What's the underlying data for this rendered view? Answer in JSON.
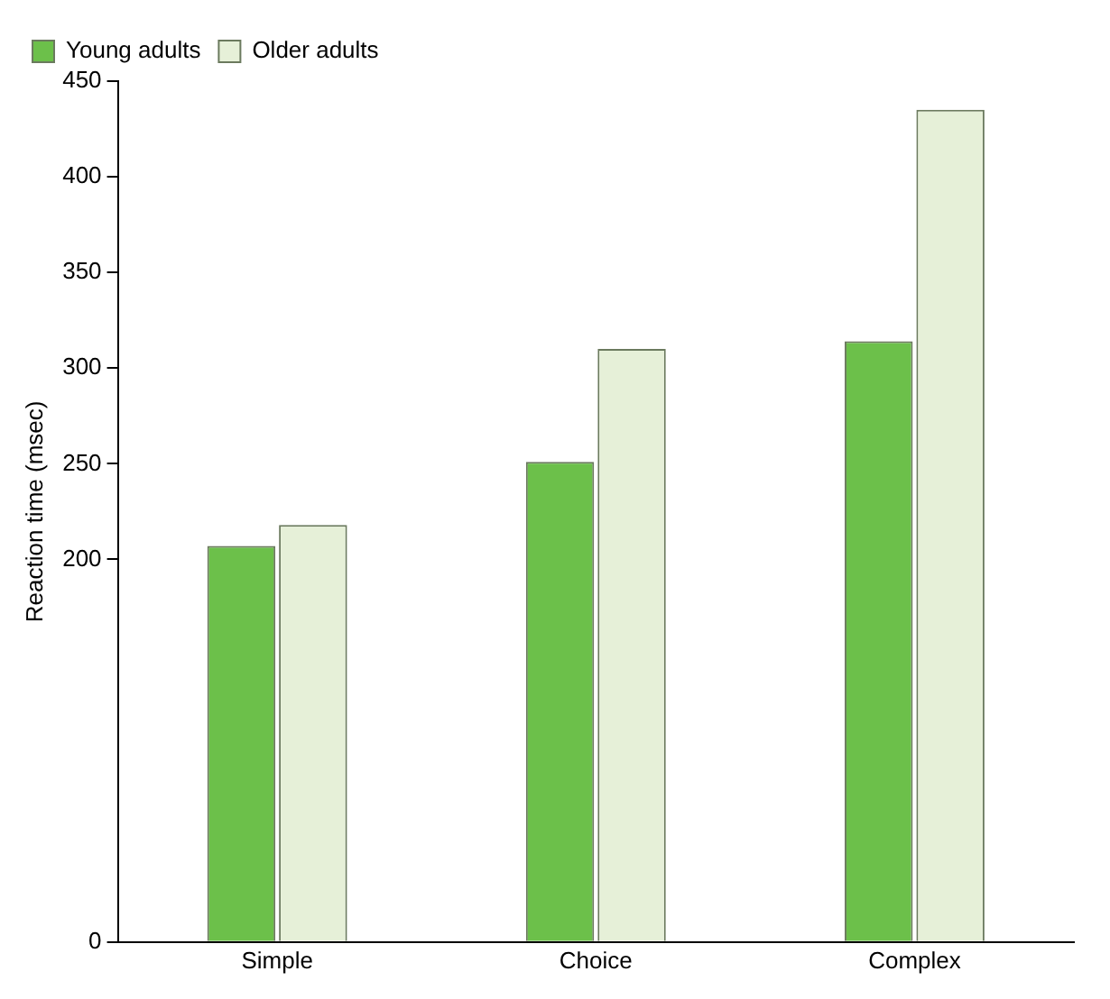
{
  "chart_data": {
    "type": "bar",
    "ylabel": "Reaction time (msec)",
    "categories": [
      "Simple",
      "Choice",
      "Complex"
    ],
    "series": [
      {
        "name": "Young adults",
        "color": "#6cc04a",
        "values": [
          207,
          251,
          314
        ]
      },
      {
        "name": "Older adults",
        "color": "#e6f0d8",
        "values": [
          218,
          310,
          435
        ]
      }
    ],
    "ylim": [
      0,
      450
    ],
    "yticks": [
      0,
      200,
      250,
      300,
      350,
      400,
      450
    ],
    "grid": false,
    "legend": "top left"
  }
}
